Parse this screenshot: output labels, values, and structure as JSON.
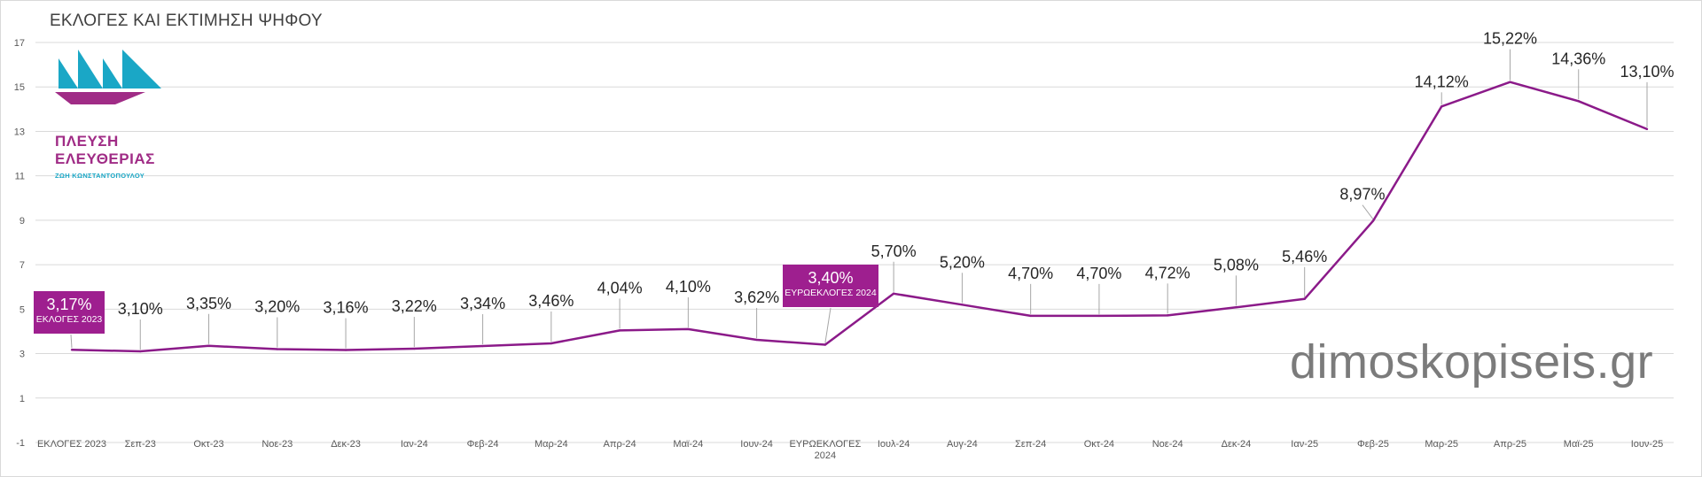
{
  "chart_data": {
    "type": "line",
    "title": "ΕΚΛΟΓΕΣ ΚΑΙ ΕΚΤΙΜΗΣΗ  ΨΗΦΟΥ",
    "categories": [
      "ΕΚΛΟΓΕΣ 2023",
      "Σεπ-23",
      "Οκτ-23",
      "Νοε-23",
      "Δεκ-23",
      "Ιαν-24",
      "Φεβ-24",
      "Μαρ-24",
      "Απρ-24",
      "Μαϊ-24",
      "Ιουν-24",
      "ΕΥΡΩΕΚΛΟΓΕΣ 2024",
      "Ιουλ-24",
      "Αυγ-24",
      "Σεπ-24",
      "Οκτ-24",
      "Νοε-24",
      "Δεκ-24",
      "Ιαν-25",
      "Φεβ-25",
      "Μαρ-25",
      "Απρ-25",
      "Μαϊ-25",
      "Ιουν-25"
    ],
    "values": [
      3.17,
      3.1,
      3.35,
      3.2,
      3.16,
      3.22,
      3.34,
      3.46,
      4.04,
      4.1,
      3.62,
      3.4,
      5.7,
      5.2,
      4.7,
      4.7,
      4.72,
      5.08,
      5.46,
      8.97,
      14.12,
      15.22,
      14.36,
      13.1
    ],
    "data_labels": [
      "",
      "3,10%",
      "3,35%",
      "3,20%",
      "3,16%",
      "3,22%",
      "3,34%",
      "3,46%",
      "4,04%",
      "4,10%",
      "3,62%",
      "",
      "5,70%",
      "5,20%",
      "4,70%",
      "4,70%",
      "4,72%",
      "5,08%",
      "5,46%",
      "8,97%",
      "14,12%",
      "15,22%",
      "14,36%",
      "13,10%"
    ],
    "y_ticks": [
      "-1",
      "1",
      "3",
      "5",
      "7",
      "9",
      "11",
      "13",
      "15",
      "17"
    ],
    "ylim": [
      -1,
      17
    ],
    "grid": true,
    "line_color": "#8b1a89",
    "callout_color": "#9e1f8f"
  },
  "callouts": [
    {
      "value": "3,17%",
      "label": "ΕΚΛΟΓΕΣ 2023"
    },
    {
      "value": "3,40%",
      "label": "ΕΥΡΩΕΚΛΟΓΕΣ 2024"
    }
  ],
  "logo": {
    "line1": "ΠΛΕΥΣΗ",
    "line2": "ΕΛΕΥΘΕΡΙΑΣ",
    "line3": "ΖΩΗ ΚΩΝΣΤΑΝΤΟΠΟΥΛΟΥ",
    "colors": {
      "teal": "#1aa7c6",
      "purple": "#a02c86"
    }
  },
  "watermark": "dimoskopiseis.gr"
}
